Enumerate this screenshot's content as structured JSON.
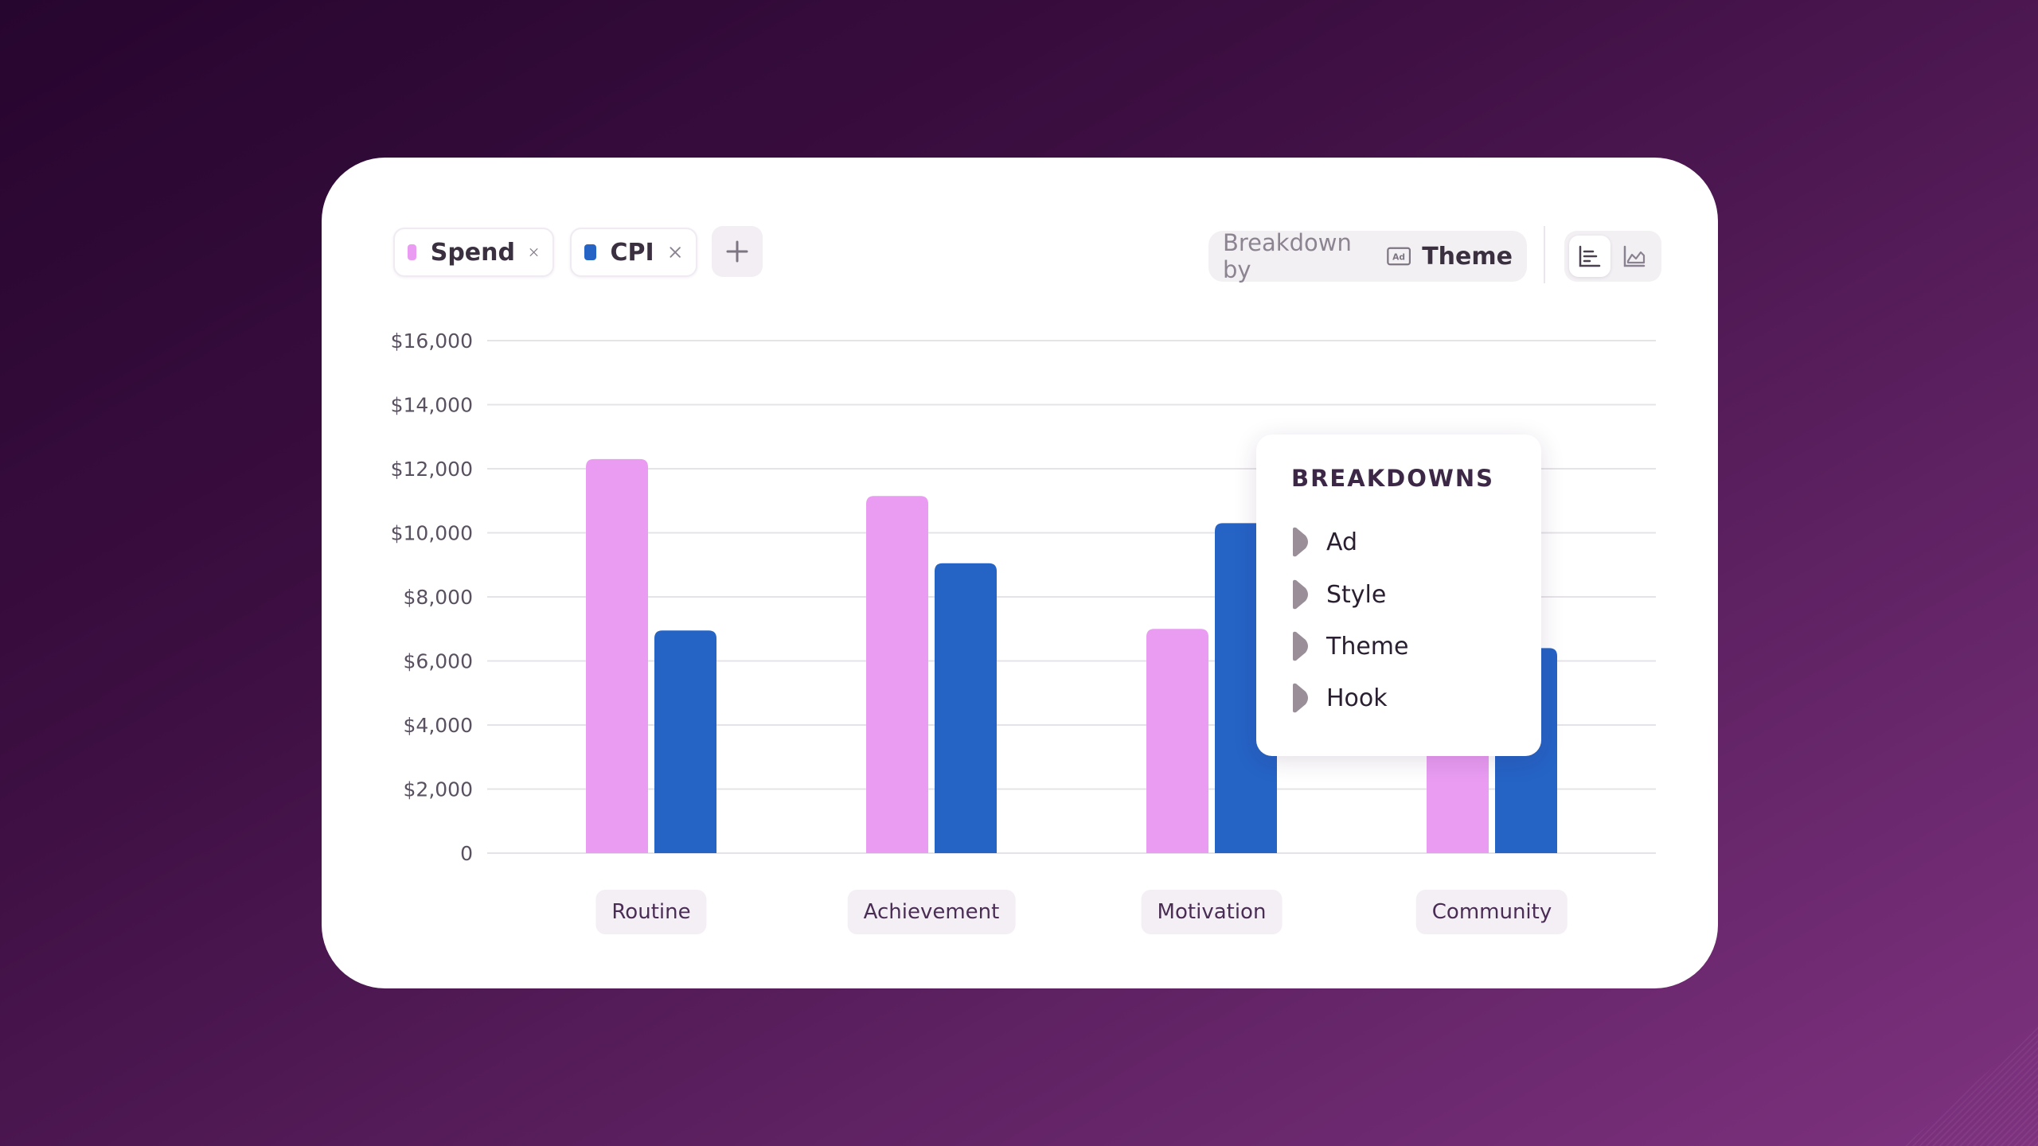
{
  "metrics": [
    {
      "label": "Spend",
      "color": "#e99cf2"
    },
    {
      "label": "CPI",
      "color": "#2563c5"
    }
  ],
  "breakdown": {
    "prefix": "Breakdown by",
    "value": "Theme"
  },
  "popup": {
    "title": "BREAKDOWNS",
    "items": [
      "Ad",
      "Style",
      "Theme",
      "Hook"
    ]
  },
  "chart_data": {
    "type": "bar",
    "categories": [
      "Routine",
      "Achievement",
      "Motivation",
      "Community"
    ],
    "series": [
      {
        "name": "Spend",
        "color": "#e99cf2",
        "values": [
          12300,
          11150,
          7000,
          4000
        ]
      },
      {
        "name": "CPI",
        "color": "#2563c5",
        "values": [
          6950,
          9050,
          10300,
          6400
        ]
      }
    ],
    "ylim": [
      0,
      16000
    ],
    "yticks": [
      "0",
      "$2,000",
      "$4,000",
      "$6,000",
      "$8,000",
      "$10,000",
      "$12,000",
      "$14,000",
      "$16,000"
    ],
    "grid": true
  }
}
